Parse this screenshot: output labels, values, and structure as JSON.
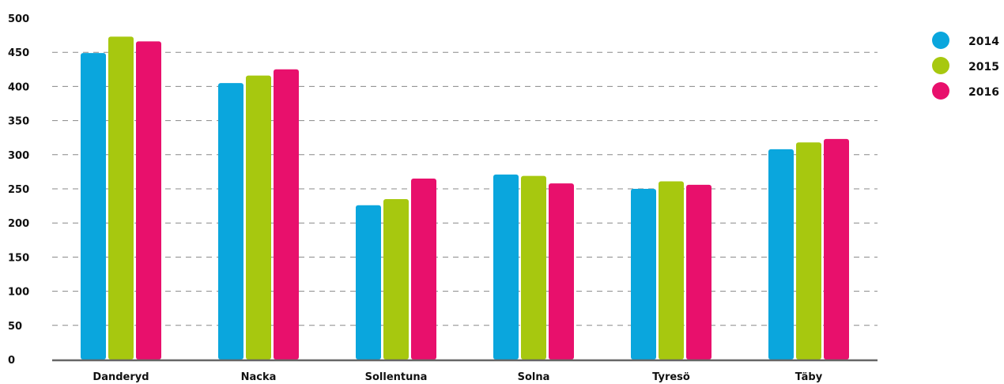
{
  "chart_data": {
    "type": "bar",
    "title": "",
    "xlabel": "",
    "ylabel": "",
    "ylim": [
      0,
      500
    ],
    "yticks": [
      0,
      50,
      100,
      150,
      200,
      250,
      300,
      350,
      400,
      450,
      500
    ],
    "grid": "dashed horizontal",
    "legend_position": "top-right",
    "categories": [
      "Danderyd",
      "Nacka",
      "Sollentuna",
      "Solna",
      "Tyresö",
      "Täby"
    ],
    "series": [
      {
        "name": "2014",
        "color": "#0aa6dd",
        "values": [
          449,
          405,
          226,
          271,
          250,
          308
        ]
      },
      {
        "name": "2015",
        "color": "#a7c80f",
        "values": [
          473,
          416,
          235,
          269,
          261,
          318
        ]
      },
      {
        "name": "2016",
        "color": "#e8106c",
        "values": [
          466,
          425,
          265,
          258,
          256,
          323
        ]
      }
    ]
  }
}
